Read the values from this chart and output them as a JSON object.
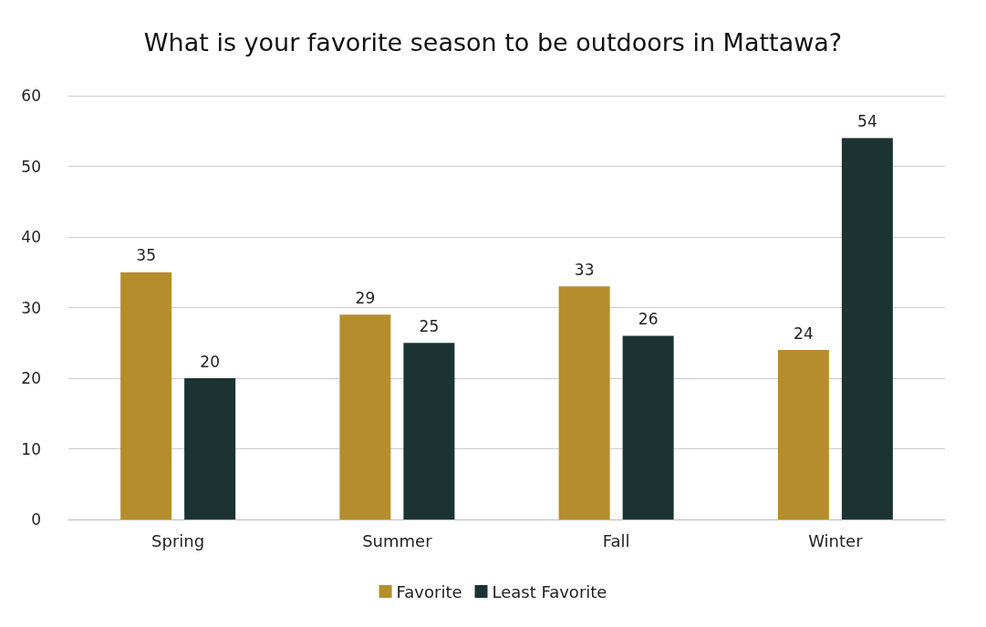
{
  "chart_data": {
    "type": "bar",
    "title": "What is your favorite season to be outdoors in Mattawa?",
    "categories": [
      "Spring",
      "Summer",
      "Fall",
      "Winter"
    ],
    "series": [
      {
        "name": "Favorite",
        "color": "#b58d2c",
        "values": [
          35,
          29,
          33,
          24
        ]
      },
      {
        "name": "Least Favorite",
        "color": "#1c3333",
        "values": [
          20,
          25,
          26,
          54
        ]
      }
    ],
    "ylim": [
      0,
      60
    ],
    "yticks": [
      0,
      10,
      20,
      30,
      40,
      50,
      60
    ],
    "grid": "y",
    "legend": "bottom",
    "data_labels": true
  }
}
